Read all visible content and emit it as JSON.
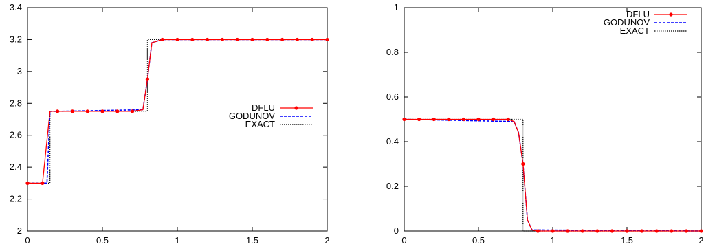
{
  "chart_data": [
    {
      "type": "line",
      "title": "",
      "xlabel": "",
      "ylabel": "",
      "xlim": [
        0,
        2
      ],
      "ylim": [
        2,
        3.4
      ],
      "xticks": [
        0,
        0.5,
        1,
        1.5,
        2
      ],
      "xtick_labels": [
        "0",
        "0.5",
        "1",
        "1.5",
        "2"
      ],
      "yticks": [
        2,
        2.2,
        2.4,
        2.6,
        2.8,
        3,
        3.2,
        3.4
      ],
      "ytick_labels": [
        "2",
        "2.2",
        "2.4",
        "2.6",
        "2.8",
        "3",
        "3.2",
        "3.4"
      ],
      "grid": false,
      "legend_position": "center-right",
      "series": [
        {
          "name": "DFLU",
          "color": "#ff0000",
          "style": "solid-with-markers",
          "x": [
            0,
            0.1,
            0.15,
            0.2,
            0.3,
            0.4,
            0.5,
            0.6,
            0.7,
            0.77,
            0.8,
            0.83,
            0.9,
            1.0,
            1.1,
            1.2,
            1.3,
            1.4,
            1.5,
            1.6,
            1.7,
            1.8,
            1.9,
            2.0
          ],
          "y": [
            2.3,
            2.3,
            2.75,
            2.75,
            2.75,
            2.75,
            2.75,
            2.75,
            2.75,
            2.76,
            2.95,
            3.18,
            3.2,
            3.2,
            3.2,
            3.2,
            3.2,
            3.2,
            3.2,
            3.2,
            3.2,
            3.2,
            3.2,
            3.2
          ],
          "marker_x": [
            0,
            0.1,
            0.2,
            0.3,
            0.4,
            0.5,
            0.6,
            0.7,
            0.8,
            0.9,
            1.0,
            1.1,
            1.2,
            1.3,
            1.4,
            1.5,
            1.6,
            1.7,
            1.8,
            1.9,
            2.0
          ],
          "marker_y": [
            2.3,
            2.3,
            2.75,
            2.75,
            2.75,
            2.75,
            2.75,
            2.75,
            2.95,
            3.2,
            3.2,
            3.2,
            3.2,
            3.2,
            3.2,
            3.2,
            3.2,
            3.2,
            3.2,
            3.2,
            3.2
          ]
        },
        {
          "name": "GODUNOV",
          "color": "#0000ff",
          "style": "dashed",
          "x": [
            0,
            0.13,
            0.15,
            0.2,
            0.77,
            0.8,
            0.83,
            0.9,
            2.0
          ],
          "y": [
            2.3,
            2.3,
            2.75,
            2.75,
            2.76,
            2.95,
            3.18,
            3.2,
            3.2
          ]
        },
        {
          "name": "EXACT",
          "color": "#000000",
          "style": "dotted",
          "x": [
            0,
            0.15,
            0.15,
            0.8,
            0.8,
            2.0
          ],
          "y": [
            2.3,
            2.3,
            2.75,
            2.75,
            3.2,
            3.2
          ]
        }
      ]
    },
    {
      "type": "line",
      "title": "",
      "xlabel": "",
      "ylabel": "",
      "xlim": [
        0,
        2
      ],
      "ylim": [
        0,
        1
      ],
      "xticks": [
        0,
        0.5,
        1,
        1.5,
        2
      ],
      "xtick_labels": [
        "0",
        "0.5",
        "1",
        "1.5",
        "2"
      ],
      "yticks": [
        0,
        0.2,
        0.4,
        0.6,
        0.8,
        1
      ],
      "ytick_labels": [
        "0",
        "0.2",
        "0.4",
        "0.6",
        "0.8",
        "1"
      ],
      "grid": false,
      "legend_position": "top-right",
      "series": [
        {
          "name": "DFLU",
          "color": "#ff0000",
          "style": "solid-with-markers",
          "x": [
            0,
            0.1,
            0.2,
            0.3,
            0.4,
            0.5,
            0.6,
            0.7,
            0.74,
            0.77,
            0.8,
            0.83,
            0.86,
            0.9,
            1.0,
            1.1,
            1.2,
            1.3,
            1.4,
            1.5,
            1.6,
            1.7,
            1.8,
            1.9,
            2.0
          ],
          "y": [
            0.5,
            0.5,
            0.5,
            0.5,
            0.5,
            0.5,
            0.5,
            0.5,
            0.49,
            0.44,
            0.3,
            0.05,
            0.005,
            0,
            0,
            0,
            0,
            0,
            0,
            0,
            0,
            0,
            0,
            0,
            0
          ],
          "marker_x": [
            0,
            0.1,
            0.2,
            0.3,
            0.4,
            0.5,
            0.6,
            0.7,
            0.8,
            0.9,
            1.0,
            1.1,
            1.2,
            1.3,
            1.4,
            1.5,
            1.6,
            1.7,
            1.8,
            1.9,
            2.0
          ],
          "marker_y": [
            0.5,
            0.5,
            0.5,
            0.5,
            0.5,
            0.5,
            0.5,
            0.5,
            0.3,
            0,
            0,
            0,
            0,
            0,
            0,
            0,
            0,
            0,
            0,
            0,
            0
          ]
        },
        {
          "name": "GODUNOV",
          "color": "#0000ff",
          "style": "dashed",
          "x": [
            0,
            0.74,
            0.77,
            0.8,
            0.83,
            0.86,
            2.0
          ],
          "y": [
            0.5,
            0.49,
            0.44,
            0.3,
            0.05,
            0.005,
            0
          ]
        },
        {
          "name": "EXACT",
          "color": "#000000",
          "style": "dotted",
          "x": [
            0,
            0.8,
            0.8,
            2.0
          ],
          "y": [
            0.5,
            0.5,
            0,
            0
          ]
        }
      ]
    }
  ]
}
